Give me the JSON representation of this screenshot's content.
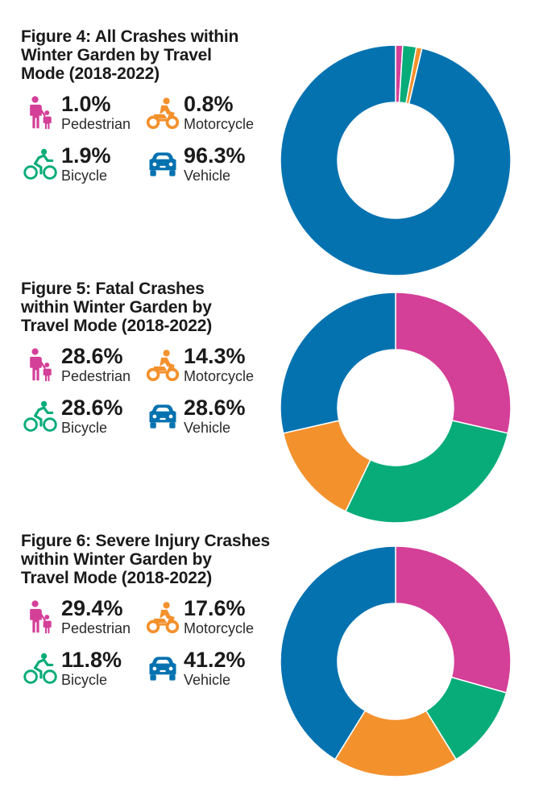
{
  "colors": {
    "pedestrian": "#D43F98",
    "motorcycle": "#F3912D",
    "bicycle": "#08AC78",
    "vehicle": "#0572B0"
  },
  "chart_data": [
    {
      "type": "pie",
      "variant": "donut",
      "title_lines": [
        "Figure 4: All Crashes within",
        "Winter Garden by Travel",
        "Mode (2018-2022)"
      ],
      "slices": [
        {
          "key": "pedestrian",
          "label": "Pedestrian",
          "value": 1.0,
          "display": "1.0%",
          "icon": "pedestrian-icon"
        },
        {
          "key": "bicycle",
          "label": "Bicycle",
          "value": 1.9,
          "display": "1.9%",
          "icon": "bicycle-icon"
        },
        {
          "key": "motorcycle",
          "label": "Motorcycle",
          "value": 0.8,
          "display": "0.8%",
          "icon": "motorcycle-icon"
        },
        {
          "key": "vehicle",
          "label": "Vehicle",
          "value": 96.3,
          "display": "96.3%",
          "icon": "car-icon"
        }
      ]
    },
    {
      "type": "pie",
      "variant": "donut",
      "title_lines": [
        "Figure 5: Fatal Crashes",
        "within Winter Garden by",
        "Travel Mode (2018-2022)"
      ],
      "slices": [
        {
          "key": "pedestrian",
          "label": "Pedestrian",
          "value": 28.6,
          "display": "28.6%",
          "icon": "pedestrian-icon"
        },
        {
          "key": "bicycle",
          "label": "Bicycle",
          "value": 28.6,
          "display": "28.6%",
          "icon": "bicycle-icon"
        },
        {
          "key": "motorcycle",
          "label": "Motorcycle",
          "value": 14.3,
          "display": "14.3%",
          "icon": "motorcycle-icon"
        },
        {
          "key": "vehicle",
          "label": "Vehicle",
          "value": 28.6,
          "display": "28.6%",
          "icon": "car-icon"
        }
      ]
    },
    {
      "type": "pie",
      "variant": "donut",
      "title_lines": [
        "Figure 6: Severe Injury Crashes",
        "within Winter Garden by",
        "Travel Mode (2018-2022)"
      ],
      "slices": [
        {
          "key": "pedestrian",
          "label": "Pedestrian",
          "value": 29.4,
          "display": "29.4%",
          "icon": "pedestrian-icon"
        },
        {
          "key": "bicycle",
          "label": "Bicycle",
          "value": 11.8,
          "display": "11.8%",
          "icon": "bicycle-icon"
        },
        {
          "key": "motorcycle",
          "label": "Motorcycle",
          "value": 17.6,
          "display": "17.6%",
          "icon": "motorcycle-icon"
        },
        {
          "key": "vehicle",
          "label": "Vehicle",
          "value": 41.2,
          "display": "41.2%",
          "icon": "car-icon"
        }
      ]
    }
  ]
}
